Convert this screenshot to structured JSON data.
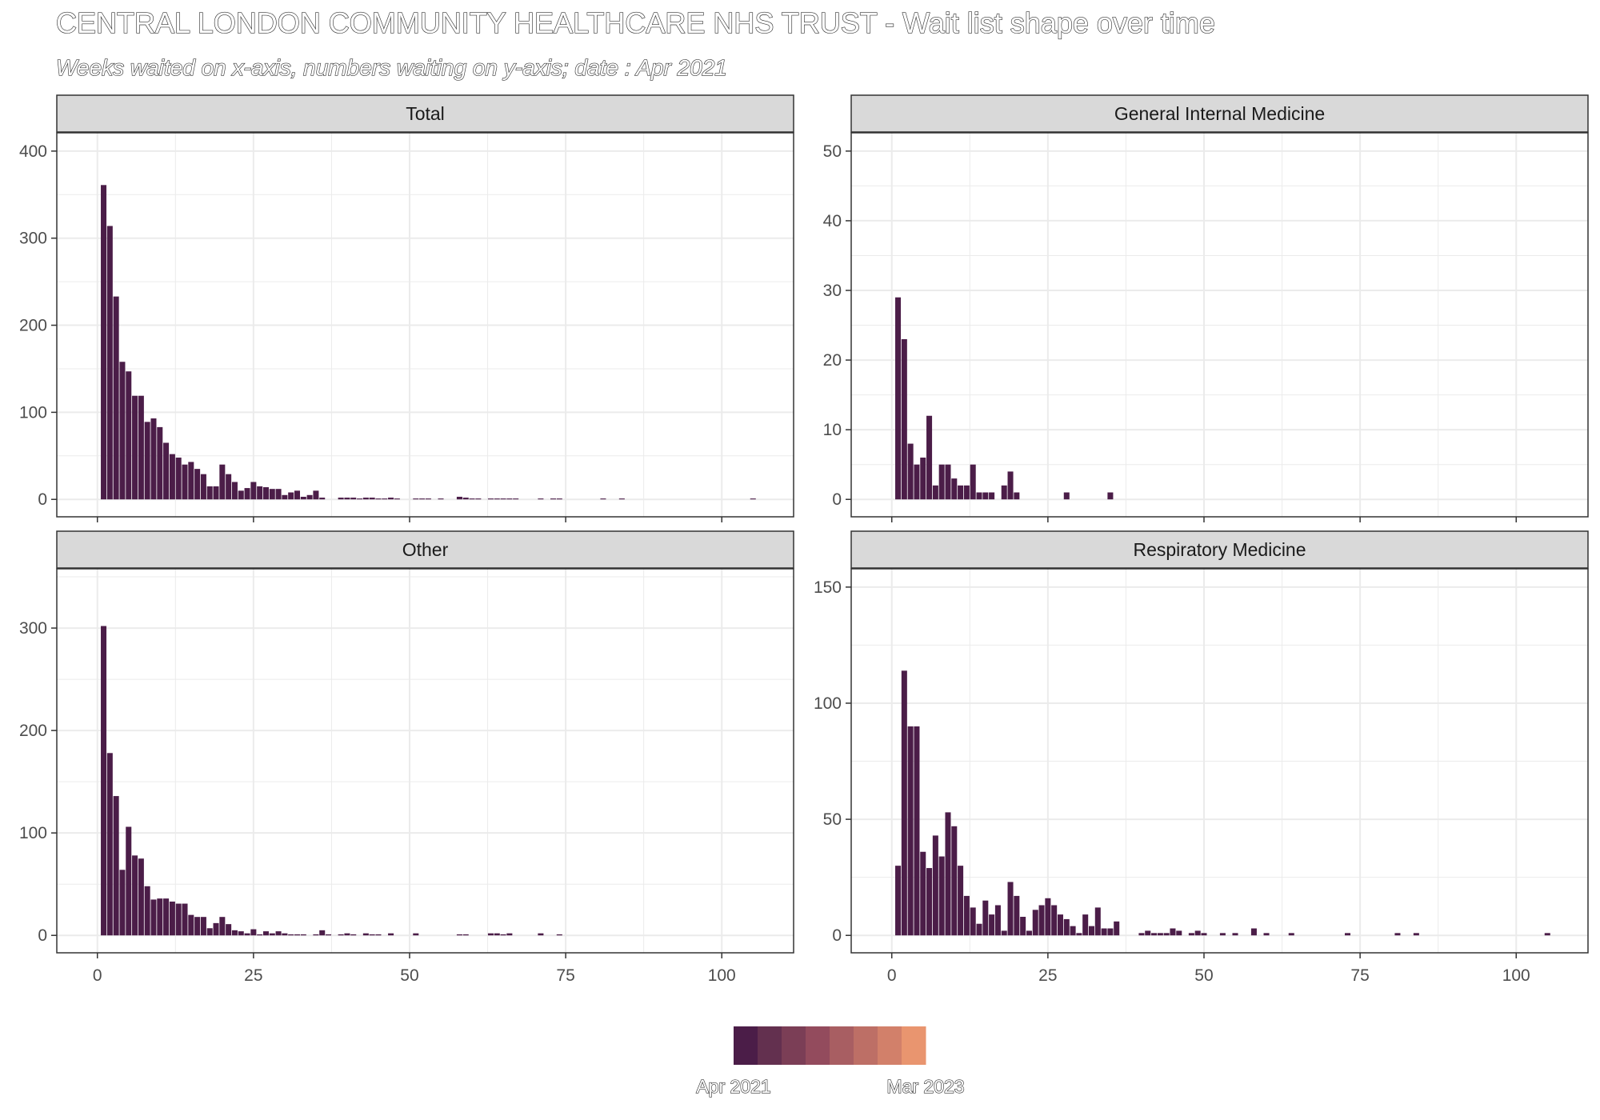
{
  "title": "CENTRAL LONDON COMMUNITY HEALTHCARE NHS TRUST - Wait list shape over time",
  "subtitle": "Weeks waited on x-axis, numbers waiting on y-axis; date : Apr 2021",
  "legend": {
    "low_label": "Apr 2021",
    "high_label": "Mar 2023",
    "colors": [
      "#4b1d48",
      "#63304f",
      "#7b3e56",
      "#934b5d",
      "#a85e62",
      "#bd6f66",
      "#d2806a",
      "#e9956f"
    ]
  },
  "colors": {
    "bar": "#4b1d48",
    "panel_border": "#333333",
    "strip_fill": "#d9d9d9",
    "grid": "#ebebeb"
  },
  "chart_data": [
    {
      "type": "bar",
      "facet": "Total",
      "x": [
        1,
        2,
        3,
        4,
        5,
        6,
        7,
        8,
        9,
        10,
        11,
        12,
        13,
        14,
        15,
        16,
        17,
        18,
        19,
        20,
        21,
        22,
        23,
        24,
        25,
        26,
        27,
        28,
        29,
        30,
        31,
        32,
        33,
        34,
        35,
        36,
        37,
        38,
        39,
        40,
        41,
        42,
        43,
        44,
        45,
        46,
        47,
        48,
        49,
        50,
        51,
        52,
        53,
        54,
        55,
        56,
        57,
        58,
        59,
        60,
        61,
        62,
        63,
        64,
        65,
        66,
        67,
        68,
        69,
        70,
        71,
        72,
        73,
        74,
        75,
        76,
        77,
        78,
        79,
        80,
        81,
        82,
        83,
        84,
        85,
        86,
        87,
        88,
        89,
        90,
        91,
        92,
        93,
        94,
        95,
        96,
        97,
        98,
        99,
        100,
        101,
        102,
        103,
        104,
        105
      ],
      "values": [
        361,
        314,
        233,
        158,
        147,
        119,
        119,
        89,
        93,
        83,
        65,
        52,
        48,
        40,
        43,
        35,
        29,
        15,
        15,
        40,
        29,
        20,
        10,
        13,
        20,
        15,
        14,
        12,
        12,
        5,
        8,
        10,
        3,
        5,
        10,
        2,
        0,
        0,
        2,
        2,
        2,
        1,
        2,
        2,
        1,
        1,
        2,
        1,
        0,
        0,
        1,
        1,
        1,
        0,
        1,
        0,
        0,
        3,
        2,
        1,
        1,
        0,
        1,
        1,
        1,
        1,
        1,
        0,
        0,
        0,
        1,
        0,
        1,
        1,
        0,
        0,
        0,
        0,
        0,
        0,
        1,
        0,
        0,
        1,
        0,
        0,
        0,
        0,
        0,
        0,
        0,
        0,
        0,
        0,
        0,
        0,
        0,
        0,
        0,
        0,
        0,
        0,
        0,
        0,
        1
      ],
      "xlim": [
        -6.5,
        111.5
      ],
      "ylim": [
        -20,
        400
      ],
      "x_ticks": [
        0,
        25,
        50,
        75,
        100
      ],
      "y_ticks": [
        0,
        100,
        200,
        300,
        400
      ],
      "grid": true
    },
    {
      "type": "bar",
      "facet": "General Internal Medicine",
      "x": [
        1,
        2,
        3,
        4,
        5,
        6,
        7,
        8,
        9,
        10,
        11,
        12,
        13,
        14,
        15,
        16,
        17,
        18,
        19,
        20,
        28,
        35
      ],
      "values": [
        29,
        23,
        8,
        5,
        6,
        12,
        2,
        5,
        5,
        3,
        2,
        2,
        5,
        1,
        1,
        1,
        0,
        2,
        4,
        1,
        1,
        1
      ],
      "xlim": [
        -6.5,
        111.5
      ],
      "ylim": [
        -2.5,
        50
      ],
      "x_ticks": [
        0,
        25,
        50,
        75,
        100
      ],
      "y_ticks": [
        0,
        10,
        20,
        30,
        40,
        50
      ],
      "grid": true
    },
    {
      "type": "bar",
      "facet": "Other",
      "x": [
        1,
        2,
        3,
        4,
        5,
        6,
        7,
        8,
        9,
        10,
        11,
        12,
        13,
        14,
        15,
        16,
        17,
        18,
        19,
        20,
        21,
        22,
        23,
        24,
        25,
        26,
        27,
        28,
        29,
        30,
        31,
        32,
        33,
        34,
        35,
        36,
        37,
        38,
        39,
        40,
        41,
        42,
        43,
        44,
        45,
        46,
        47,
        48,
        49,
        50,
        51,
        52,
        53,
        54,
        55,
        56,
        57,
        58,
        59,
        60,
        61,
        62,
        63,
        64,
        65,
        66,
        67,
        68,
        69,
        70,
        71,
        72,
        73,
        74
      ],
      "values": [
        302,
        178,
        136,
        64,
        106,
        78,
        75,
        48,
        35,
        36,
        36,
        33,
        31,
        31,
        20,
        18,
        18,
        7,
        12,
        18,
        11,
        5,
        4,
        2,
        6,
        1,
        4,
        2,
        4,
        2,
        1,
        1,
        1,
        0,
        1,
        5,
        1,
        0,
        1,
        2,
        1,
        0,
        2,
        1,
        1,
        0,
        2,
        0,
        0,
        0,
        2,
        0,
        0,
        0,
        0,
        0,
        0,
        1,
        1,
        0,
        0,
        0,
        2,
        2,
        1,
        2,
        0,
        0,
        0,
        0,
        2,
        0,
        0,
        1
      ],
      "xlim": [
        -6.5,
        111.5
      ],
      "ylim": [
        -17,
        340
      ],
      "x_ticks": [
        0,
        25,
        50,
        75,
        100
      ],
      "y_ticks": [
        0,
        100,
        200,
        300
      ],
      "grid": true
    },
    {
      "type": "bar",
      "facet": "Respiratory Medicine",
      "x": [
        1,
        2,
        3,
        4,
        5,
        6,
        7,
        8,
        9,
        10,
        11,
        12,
        13,
        14,
        15,
        16,
        17,
        18,
        19,
        20,
        21,
        22,
        23,
        24,
        25,
        26,
        27,
        28,
        29,
        30,
        31,
        32,
        33,
        34,
        35,
        36,
        37,
        38,
        39,
        40,
        41,
        42,
        43,
        44,
        45,
        46,
        47,
        48,
        49,
        50,
        51,
        53,
        55,
        58,
        60,
        64,
        73,
        81,
        84,
        105
      ],
      "values": [
        30,
        114,
        90,
        90,
        36,
        29,
        43,
        34,
        53,
        47,
        30,
        17,
        12,
        5,
        15,
        9,
        13,
        2,
        23,
        17,
        8,
        2,
        11,
        13,
        16,
        13,
        9,
        7,
        4,
        1,
        9,
        4,
        12,
        3,
        3,
        6,
        0,
        0,
        0,
        1,
        2,
        1,
        1,
        1,
        3,
        2,
        0,
        1,
        2,
        1,
        0,
        1,
        1,
        3,
        1,
        1,
        1,
        1,
        1,
        1
      ],
      "xlim": [
        -6.5,
        111.5
      ],
      "ylim": [
        -7.5,
        150
      ],
      "x_ticks": [
        0,
        25,
        50,
        75,
        100
      ],
      "y_ticks": [
        0,
        50,
        100,
        150
      ],
      "grid": true
    }
  ]
}
